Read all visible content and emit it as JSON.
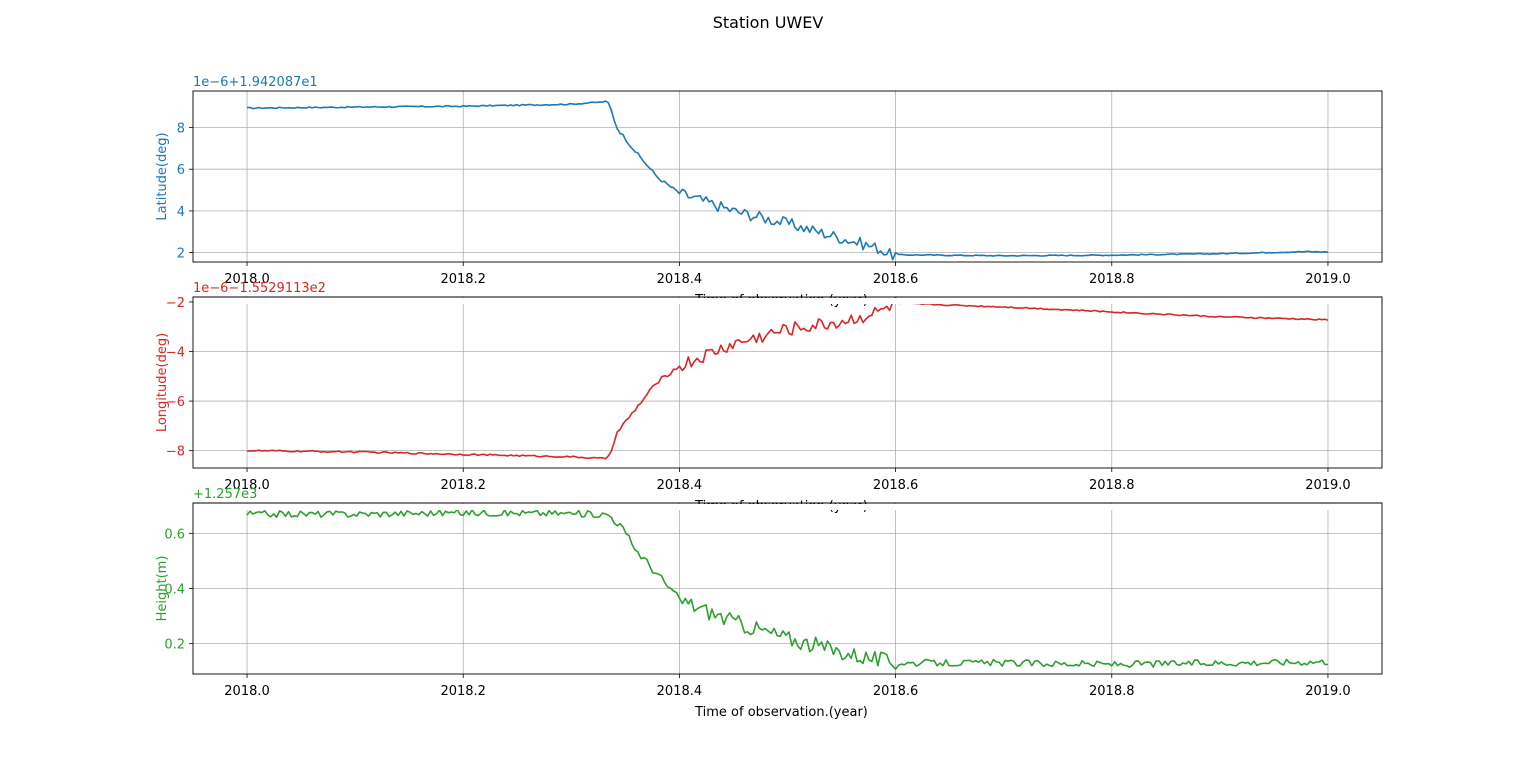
{
  "figure": {
    "title": "Station UWEV"
  },
  "chart_data": [
    {
      "type": "line",
      "color": "#1f77b4",
      "ylabel": "Latitude(deg)",
      "xlabel": "Time of observation.(year)",
      "offset_label": "1e−6+1.942087e1",
      "xlim": [
        2017.95,
        2019.05
      ],
      "ylim": [
        1.55,
        9.75
      ],
      "xticks": [
        2018.0,
        2018.2,
        2018.4,
        2018.6,
        2018.8,
        2019.0
      ],
      "xtick_labels": [
        "2018.0",
        "2018.2",
        "2018.4",
        "2018.6",
        "2018.8",
        "2019.0"
      ],
      "yticks": [
        2,
        4,
        6,
        8
      ],
      "ytick_labels": [
        "2",
        "4",
        "6",
        "8"
      ],
      "grid": true,
      "keypoints": [
        [
          2018.0,
          8.93
        ],
        [
          2018.1,
          8.98
        ],
        [
          2018.2,
          9.02
        ],
        [
          2018.3,
          9.12
        ],
        [
          2018.33,
          9.23
        ],
        [
          2018.335,
          9.15
        ],
        [
          2018.342,
          8.0
        ],
        [
          2018.36,
          6.8
        ],
        [
          2018.38,
          5.6
        ],
        [
          2018.4,
          4.85
        ],
        [
          2018.45,
          4.0
        ],
        [
          2018.5,
          3.4
        ],
        [
          2018.55,
          2.7
        ],
        [
          2018.585,
          2.2
        ],
        [
          2018.595,
          1.9
        ],
        [
          2018.7,
          1.85
        ],
        [
          2018.8,
          1.88
        ],
        [
          2018.9,
          1.95
        ],
        [
          2018.98,
          2.05
        ],
        [
          2019.0,
          2.03
        ]
      ],
      "noise": [
        [
          2018.0,
          2018.33,
          0.03
        ],
        [
          2018.33,
          2018.4,
          0.08
        ],
        [
          2018.4,
          2018.6,
          0.28
        ],
        [
          2018.6,
          2019.0,
          0.025
        ]
      ]
    },
    {
      "type": "line",
      "color": "#d62728",
      "ylabel": "Longitude(deg)",
      "xlabel": "Time of observation.(year)",
      "offset_label": "1e−6−1.5529113e2",
      "xlim": [
        2017.95,
        2019.05
      ],
      "ylim": [
        -8.7,
        -1.8
      ],
      "xticks": [
        2018.0,
        2018.2,
        2018.4,
        2018.6,
        2018.8,
        2019.0
      ],
      "xtick_labels": [
        "2018.0",
        "2018.2",
        "2018.4",
        "2018.6",
        "2018.8",
        "2019.0"
      ],
      "yticks": [
        -8,
        -6,
        -4,
        -2
      ],
      "ytick_labels": [
        "−8",
        "−6",
        "−4",
        "−2"
      ],
      "grid": true,
      "keypoints": [
        [
          2018.0,
          -8.0
        ],
        [
          2018.1,
          -8.05
        ],
        [
          2018.2,
          -8.15
        ],
        [
          2018.3,
          -8.25
        ],
        [
          2018.33,
          -8.32
        ],
        [
          2018.335,
          -8.2
        ],
        [
          2018.342,
          -7.3
        ],
        [
          2018.36,
          -6.3
        ],
        [
          2018.38,
          -5.2
        ],
        [
          2018.4,
          -4.6
        ],
        [
          2018.45,
          -3.7
        ],
        [
          2018.5,
          -3.1
        ],
        [
          2018.55,
          -2.8
        ],
        [
          2018.585,
          -2.4
        ],
        [
          2018.6,
          -2.05
        ],
        [
          2018.7,
          -2.2
        ],
        [
          2018.8,
          -2.4
        ],
        [
          2018.9,
          -2.6
        ],
        [
          2019.0,
          -2.72
        ]
      ],
      "noise": [
        [
          2018.0,
          2018.33,
          0.03
        ],
        [
          2018.33,
          2018.4,
          0.08
        ],
        [
          2018.4,
          2018.6,
          0.28
        ],
        [
          2018.6,
          2019.0,
          0.025
        ]
      ]
    },
    {
      "type": "line",
      "color": "#2ca02c",
      "ylabel": "Height(m)",
      "xlabel": "Time of observation.(year)",
      "offset_label": "+1.257e3",
      "xlim": [
        2017.95,
        2019.05
      ],
      "ylim": [
        0.09,
        0.71
      ],
      "xticks": [
        2018.0,
        2018.2,
        2018.4,
        2018.6,
        2018.8,
        2019.0
      ],
      "xtick_labels": [
        "2018.0",
        "2018.2",
        "2018.4",
        "2018.6",
        "2018.8",
        "2019.0"
      ],
      "yticks": [
        0.2,
        0.4,
        0.6
      ],
      "ytick_labels": [
        "0.2",
        "0.4",
        "0.6"
      ],
      "grid": true,
      "keypoints": [
        [
          2018.0,
          0.67
        ],
        [
          2018.1,
          0.67
        ],
        [
          2018.2,
          0.675
        ],
        [
          2018.3,
          0.672
        ],
        [
          2018.335,
          0.668
        ],
        [
          2018.345,
          0.63
        ],
        [
          2018.36,
          0.54
        ],
        [
          2018.38,
          0.45
        ],
        [
          2018.4,
          0.36
        ],
        [
          2018.45,
          0.28
        ],
        [
          2018.5,
          0.22
        ],
        [
          2018.55,
          0.17
        ],
        [
          2018.6,
          0.13
        ],
        [
          2018.7,
          0.13
        ],
        [
          2018.8,
          0.125
        ],
        [
          2018.9,
          0.13
        ],
        [
          2019.0,
          0.135
        ]
      ],
      "noise": [
        [
          2018.0,
          2018.33,
          0.012
        ],
        [
          2018.33,
          2018.4,
          0.015
        ],
        [
          2018.4,
          2018.6,
          0.03
        ],
        [
          2018.6,
          2019.0,
          0.012
        ]
      ]
    }
  ]
}
